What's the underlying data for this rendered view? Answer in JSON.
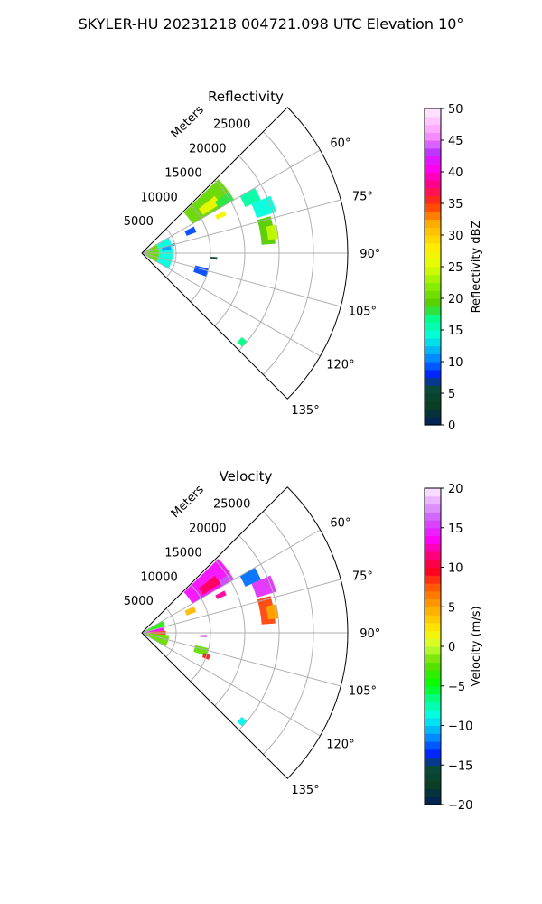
{
  "figure_title": "SKYLER-HU  20231218  004721.098 UTC Elevation 10°",
  "chart_data": [
    {
      "type": "heatmap",
      "subtype": "polar-sector (radar PPI)",
      "title": "Reflectivity",
      "radial_label": "Meters",
      "r_ticks": [
        5000,
        10000,
        15000,
        20000,
        25000
      ],
      "r_tick_labels": [
        "5000",
        "10000",
        "15000",
        "20000",
        "25000"
      ],
      "r_range": [
        0,
        30000
      ],
      "angle_range_deg": [
        45,
        135
      ],
      "angle_ticks": [
        60,
        75,
        90,
        105,
        120,
        135
      ],
      "angle_tick_labels": [
        "60°",
        "75°",
        "90°",
        "105°",
        "120°",
        "135°"
      ],
      "grid": true,
      "colorbar": {
        "label": "Reflectivity dBZ",
        "range": [
          0,
          50
        ],
        "ticks": [
          0,
          5,
          10,
          15,
          20,
          25,
          30,
          35,
          40,
          45,
          50
        ],
        "tick_labels": [
          "0",
          "5",
          "10",
          "15",
          "20",
          "25",
          "30",
          "35",
          "40",
          "45",
          "50"
        ]
      },
      "echoes": [
        {
          "az": [
            46,
            60
          ],
          "r": [
            8500,
            15500
          ],
          "value": 20
        },
        {
          "az": [
            52,
            58
          ],
          "r": [
            10500,
            13500
          ],
          "value": 26
        },
        {
          "az": [
            55,
            60
          ],
          "r": [
            13000,
            15500
          ],
          "value": 18
        },
        {
          "az": [
            60,
            66
          ],
          "r": [
            16500,
            19000
          ],
          "value": 16
        },
        {
          "az": [
            66,
            73
          ],
          "r": [
            17500,
            20500
          ],
          "value": 14
        },
        {
          "az": [
            63,
            66
          ],
          "r": [
            12000,
            13500
          ],
          "value": 27
        },
        {
          "az": [
            74,
            86
          ],
          "r": [
            17500,
            19500
          ],
          "value": 19
        },
        {
          "az": [
            78,
            84
          ],
          "r": [
            18500,
            20000
          ],
          "value": 24
        },
        {
          "az": [
            63,
            69
          ],
          "r": [
            7000,
            8500
          ],
          "value": 9
        },
        {
          "az": [
            73,
            77
          ],
          "r": [
            4000,
            5000
          ],
          "value": 11
        },
        {
          "az": [
            93,
            95
          ],
          "r": [
            10000,
            11000
          ],
          "value": 6
        },
        {
          "az": [
            103,
            110
          ],
          "r": [
            8000,
            10000
          ],
          "value": 9
        },
        {
          "az": [
            130,
            133
          ],
          "r": [
            19000,
            20000
          ],
          "value": 17
        },
        {
          "az": [
            58,
            122
          ],
          "r": [
            200,
            2500
          ],
          "value": 20
        },
        {
          "az": [
            60,
            120
          ],
          "r": [
            2500,
            4500
          ],
          "value": 14
        },
        {
          "az": [
            74,
            84
          ],
          "r": [
            3000,
            4300
          ],
          "value": 11
        }
      ]
    },
    {
      "type": "heatmap",
      "subtype": "polar-sector (radar PPI)",
      "title": "Velocity",
      "radial_label": "Meters",
      "r_ticks": [
        5000,
        10000,
        15000,
        20000,
        25000
      ],
      "r_tick_labels": [
        "5000",
        "10000",
        "15000",
        "20000",
        "25000"
      ],
      "r_range": [
        0,
        30000
      ],
      "angle_range_deg": [
        45,
        135
      ],
      "angle_ticks": [
        60,
        75,
        90,
        105,
        120,
        135
      ],
      "angle_tick_labels": [
        "60°",
        "75°",
        "90°",
        "105°",
        "120°",
        "135°"
      ],
      "grid": true,
      "colorbar": {
        "label": "Velocity (m/s)",
        "range": [
          -20,
          20
        ],
        "ticks": [
          -20,
          -15,
          -10,
          -5,
          0,
          5,
          10,
          15,
          20
        ],
        "tick_labels": [
          "−20",
          "−15",
          "−10",
          "−5",
          "0",
          "5",
          "10",
          "15",
          "20"
        ]
      },
      "echoes": [
        {
          "az": [
            46,
            60
          ],
          "r": [
            8500,
            15500
          ],
          "value": 14
        },
        {
          "az": [
            52,
            58
          ],
          "r": [
            10500,
            13500
          ],
          "value": 11
        },
        {
          "az": [
            56,
            60
          ],
          "r": [
            13500,
            15500
          ],
          "value": 16
        },
        {
          "az": [
            60,
            66
          ],
          "r": [
            16500,
            19000
          ],
          "value": -12
        },
        {
          "az": [
            66,
            73
          ],
          "r": [
            17500,
            20500
          ],
          "value": 15
        },
        {
          "az": [
            63,
            66
          ],
          "r": [
            12000,
            13500
          ],
          "value": 12
        },
        {
          "az": [
            74,
            86
          ],
          "r": [
            17500,
            19500
          ],
          "value": 8
        },
        {
          "az": [
            78,
            84
          ],
          "r": [
            18500,
            20000
          ],
          "value": 5
        },
        {
          "az": [
            63,
            69
          ],
          "r": [
            7000,
            8500
          ],
          "value": 4
        },
        {
          "az": [
            92,
            94
          ],
          "r": [
            8500,
            9500
          ],
          "value": 16
        },
        {
          "az": [
            103,
            110
          ],
          "r": [
            8000,
            10000
          ],
          "value": -2
        },
        {
          "az": [
            108,
            112
          ],
          "r": [
            9500,
            10500
          ],
          "value": 9
        },
        {
          "az": [
            130,
            133
          ],
          "r": [
            19000,
            20000
          ],
          "value": -9
        },
        {
          "az": [
            60,
            75
          ],
          "r": [
            200,
            3500
          ],
          "value": -4
        },
        {
          "az": [
            75,
            85
          ],
          "r": [
            200,
            3200
          ],
          "value": 14
        },
        {
          "az": [
            85,
            95
          ],
          "r": [
            200,
            3500
          ],
          "value": 8
        },
        {
          "az": [
            95,
            120
          ],
          "r": [
            200,
            4000
          ],
          "value": -2
        }
      ]
    }
  ]
}
